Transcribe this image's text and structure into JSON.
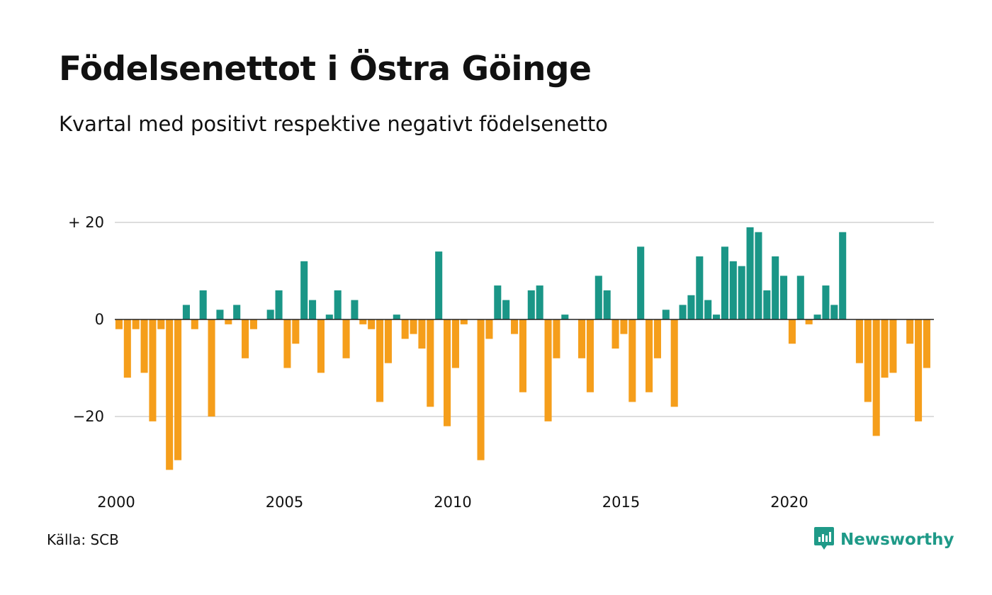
{
  "title": "Födelsenettot i Östra Göinge",
  "subtitle": "Kvartal med positivt respektive negativt födelsenetto",
  "source": "Källa: SCB",
  "brand": "Newsworthy",
  "colors": {
    "positive": "#1a9687",
    "negative": "#f59e1b",
    "grid": "#dddddd",
    "zero_line": "#222222",
    "brand": "#1f9a88"
  },
  "chart_data": {
    "type": "bar",
    "title": "Födelsenettot i Östra Göinge",
    "subtitle": "Kvartal med positivt respektive negativt födelsenetto",
    "xlabel": "",
    "ylabel": "",
    "ylim": [
      -33,
      20
    ],
    "grid": true,
    "x_start": 2000,
    "x_end": 2024.25,
    "x_ticks": [
      {
        "value": 2000,
        "label": "2000"
      },
      {
        "value": 2005,
        "label": "2005"
      },
      {
        "value": 2010,
        "label": "2010"
      },
      {
        "value": 2015,
        "label": "2015"
      },
      {
        "value": 2020,
        "label": "2020"
      }
    ],
    "y_ticks": [
      {
        "value": 20,
        "label": "+ 20"
      },
      {
        "value": 0,
        "label": "0"
      },
      {
        "value": -20,
        "label": "−20"
      }
    ],
    "series": [
      {
        "values": [
          -2,
          -12,
          -2,
          -11,
          -21,
          -2,
          -31,
          -29,
          3,
          -2,
          6,
          -20,
          2,
          -1,
          3,
          -8,
          -2,
          0,
          2,
          6,
          -10,
          -5,
          12,
          4,
          -11,
          1,
          6,
          -8,
          4,
          -1,
          -2,
          -17,
          -9,
          1,
          -4,
          -3,
          -6,
          -18,
          14,
          -22,
          -10,
          -1,
          0,
          -29,
          -4,
          7,
          4,
          -3,
          -15,
          6,
          7,
          -21,
          -8,
          1,
          0,
          -8,
          -15,
          9,
          6,
          -6,
          -3,
          -17,
          15,
          -15,
          -8,
          2,
          -18,
          3,
          5,
          13,
          4,
          1,
          15,
          12,
          11,
          19,
          18,
          6,
          13,
          9,
          -5,
          9,
          -1,
          1,
          7,
          3,
          18,
          0,
          -9,
          -17,
          -24,
          -12,
          -11,
          0,
          -5,
          -21,
          -10
        ]
      }
    ]
  }
}
